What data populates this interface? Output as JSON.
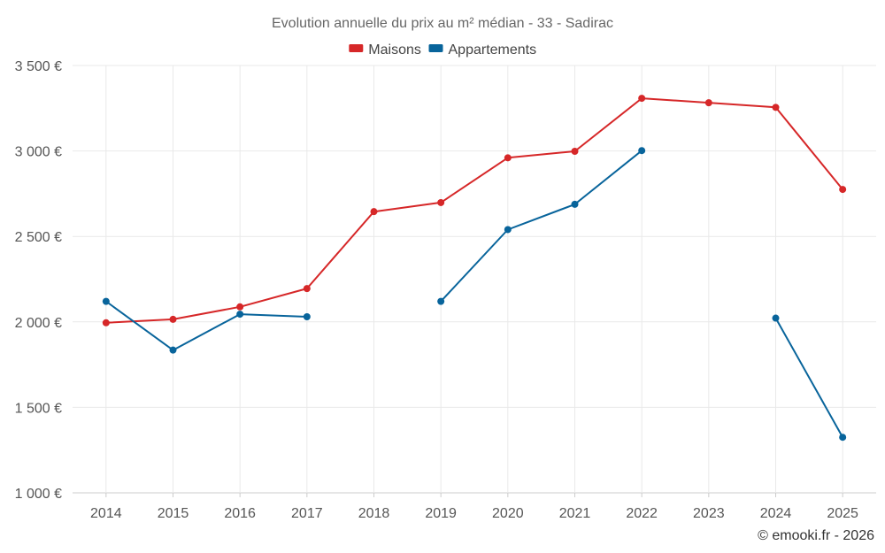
{
  "chart_data": {
    "type": "line",
    "title": "Evolution annuelle du prix au m² médian - 33 - Sadirac",
    "categories": [
      "2014",
      "2015",
      "2016",
      "2017",
      "2018",
      "2019",
      "2020",
      "2021",
      "2022",
      "2023",
      "2024",
      "2025"
    ],
    "series": [
      {
        "name": "Maisons",
        "color": "#d62728",
        "values": [
          1995,
          2015,
          2088,
          2195,
          2645,
          2698,
          2960,
          2998,
          3308,
          3282,
          3255,
          2775
        ]
      },
      {
        "name": "Appartements",
        "color": "#08649b",
        "values": [
          2120,
          1835,
          2045,
          2030,
          null,
          2120,
          2540,
          2688,
          3002,
          null,
          2022,
          1325
        ]
      }
    ],
    "ylim": [
      1000,
      3500
    ],
    "yticks": [
      1000,
      1500,
      2000,
      2500,
      3000,
      3500
    ],
    "ytick_labels": [
      "1 000 €",
      "1 500 €",
      "2 000 €",
      "2 500 €",
      "3 000 €",
      "3 500 €"
    ],
    "xlabel": "",
    "ylabel": "",
    "legend_position": "top-center",
    "grid": true
  },
  "credit": "© emooki.fr - 2026"
}
